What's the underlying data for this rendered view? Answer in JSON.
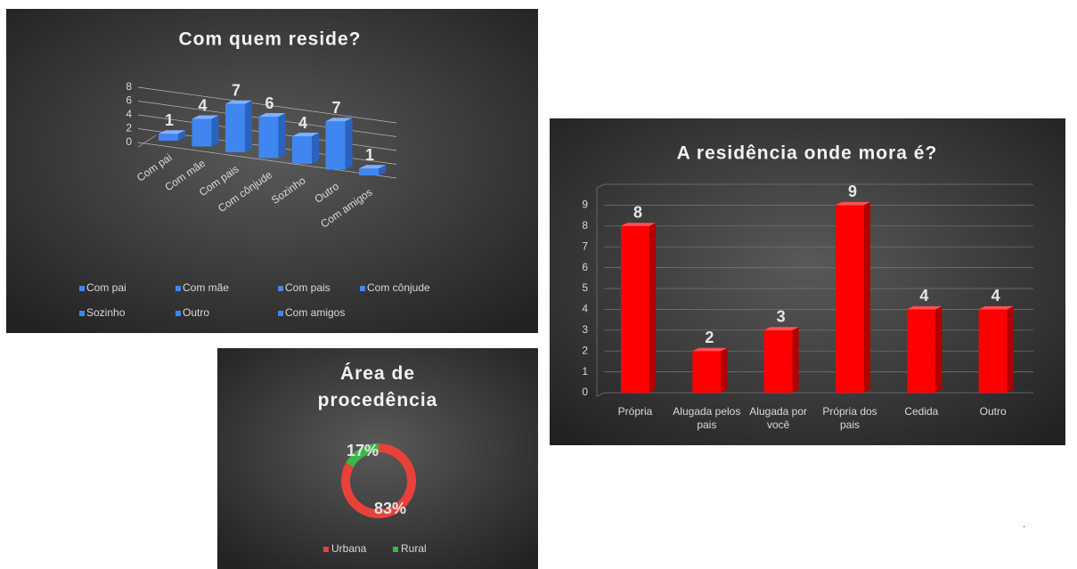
{
  "chart_data": [
    {
      "type": "bar3d",
      "title": "Com quem reside?",
      "categories": [
        "Com pai",
        "Com mãe",
        "Com pais",
        "Com cônjude",
        "Sozinho",
        "Outro",
        "Com amigos"
      ],
      "values": [
        1,
        4,
        7,
        6,
        4,
        7,
        1
      ],
      "color": "#3f86f0",
      "ylim": [
        0,
        8
      ],
      "yticks": [
        0,
        2,
        4,
        6,
        8
      ],
      "grid": true,
      "legend": "bottom"
    },
    {
      "type": "donut",
      "title": "Área de procedência",
      "categories": [
        "Urbana",
        "Rural"
      ],
      "values": [
        83,
        17
      ],
      "value_labels": [
        "83%",
        "17%"
      ],
      "colors": [
        "#e8413a",
        "#3cb54a"
      ],
      "legend": "bottom"
    },
    {
      "type": "bar",
      "title": "A residência onde mora é?",
      "categories": [
        "Própria",
        "Alugada pelos pais",
        "Alugada por você",
        "Própria dos pais",
        "Cedida",
        "Outro"
      ],
      "values": [
        8,
        2,
        3,
        9,
        4,
        4
      ],
      "color": "#ff0000",
      "ylim": [
        0,
        10
      ],
      "yticks": [
        0,
        1,
        2,
        3,
        4,
        5,
        6,
        7,
        8,
        9
      ],
      "grid": true
    }
  ]
}
